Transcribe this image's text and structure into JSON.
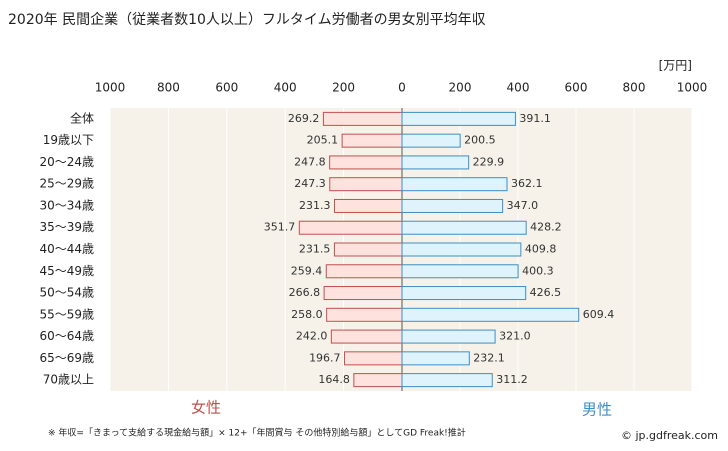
{
  "chart_data": {
    "type": "butterfly",
    "title": "2020年 民間企業（従業者数10人以上）フルタイム労働者の男女別平均年収",
    "unit": "[万円]",
    "categories": [
      "全体",
      "19歳以下",
      "20～24歳",
      "25～29歳",
      "30～34歳",
      "35～39歳",
      "40～44歳",
      "45～49歳",
      "50～54歳",
      "55～59歳",
      "60～64歳",
      "65～69歳",
      "70歳以上"
    ],
    "axes": {
      "left": {
        "xlim": [
          1000,
          0
        ],
        "xticks": [
          1000,
          800,
          600,
          400,
          200
        ]
      },
      "right": {
        "xlim": [
          0,
          1000
        ],
        "xticks": [
          0,
          200,
          400,
          600,
          800,
          1000
        ]
      }
    },
    "grid": true,
    "series": [
      {
        "name": "女性",
        "axis": "left",
        "color": "#c0504d",
        "fill": "#fde2de",
        "values": [
          269.2,
          205.1,
          247.8,
          247.3,
          231.3,
          351.7,
          231.5,
          259.4,
          266.8,
          258.0,
          242.0,
          196.7,
          164.8
        ],
        "value_labels": [
          "269.2",
          "205.1",
          "247.8",
          "247.3",
          "231.3",
          "351.7",
          "231.5",
          "259.4",
          "266.8",
          "258.0",
          "242.0",
          "196.7",
          "164.8"
        ]
      },
      {
        "name": "男性",
        "axis": "right",
        "color": "#3d8fc6",
        "fill": "#def3fb",
        "values": [
          391.1,
          200.5,
          229.9,
          362.1,
          347.0,
          428.2,
          409.8,
          400.3,
          426.5,
          609.4,
          321.0,
          232.1,
          311.2
        ],
        "value_labels": [
          "391.1",
          "200.5",
          "229.9",
          "362.1",
          "347.0",
          "428.2",
          "409.8",
          "400.3",
          "426.5",
          "609.4",
          "321.0",
          "232.1",
          "311.2"
        ]
      }
    ],
    "footnote": "※ 年収=「きまって支給する現金給与額」× 12+「年間賞与 その他特別給与額」としてGD Freak!推計",
    "watermark": "© jp.gdfreak.com"
  }
}
